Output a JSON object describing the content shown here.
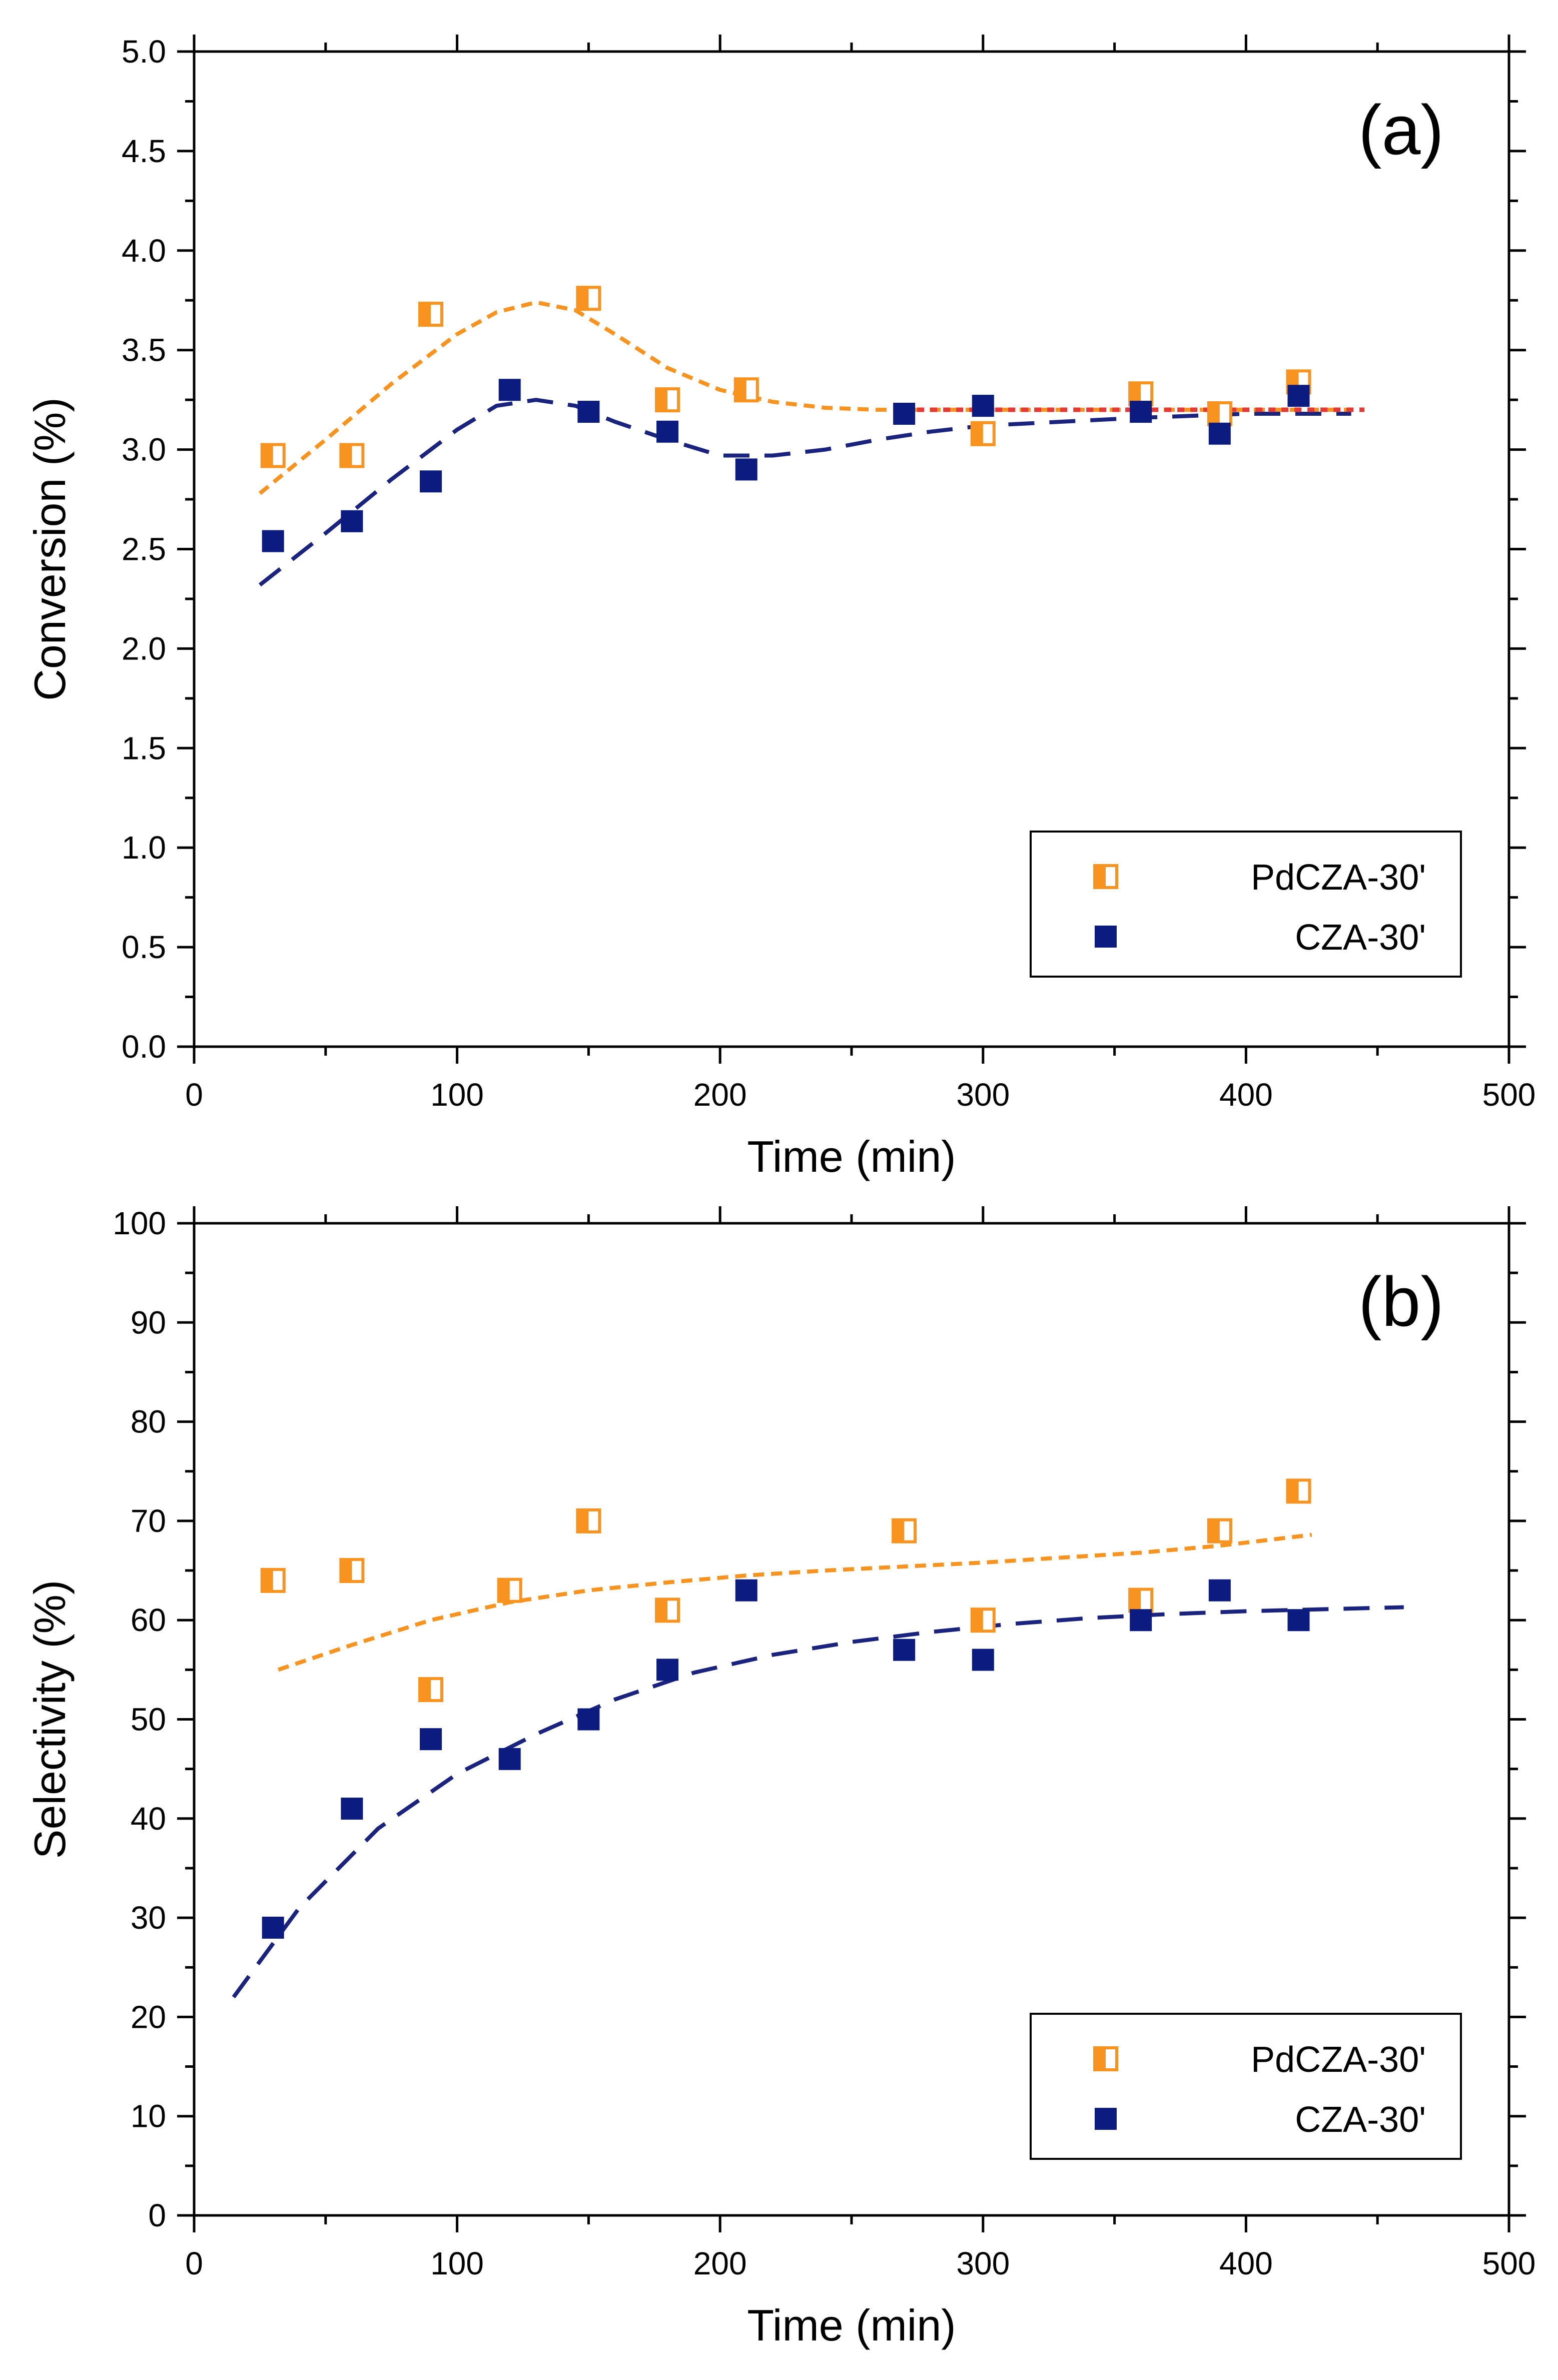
{
  "colors": {
    "pd": "#F7931E",
    "cza": "#0B1B7F",
    "pd_fit": "#F7931E",
    "cza_fit": "#1A237E",
    "ref_line": "#E53935"
  },
  "chart_data": [
    {
      "type": "scatter",
      "panel_label": "(a)",
      "xlabel": "Time (min)",
      "ylabel": "Conversion (%)",
      "xlim": [
        0,
        500
      ],
      "ylim": [
        0.0,
        5.0
      ],
      "x_ticks": [
        "0",
        "100",
        "200",
        "300",
        "400",
        "500"
      ],
      "y_ticks": [
        "0.0",
        "0.5",
        "1.0",
        "1.5",
        "2.0",
        "2.5",
        "3.0",
        "3.5",
        "4.0",
        "4.5",
        "5.0"
      ],
      "legend_position": "bottom-right",
      "series": [
        {
          "name": "PdCZA-30'",
          "marker": "half-filled-square",
          "x": [
            30,
            60,
            90,
            150,
            180,
            210,
            300,
            360,
            390,
            420
          ],
          "y": [
            2.97,
            2.97,
            3.68,
            3.76,
            3.25,
            3.3,
            3.08,
            3.28,
            3.18,
            3.34
          ]
        },
        {
          "name": "CZA-30'",
          "marker": "filled-square",
          "x": [
            30,
            60,
            90,
            120,
            150,
            180,
            210,
            270,
            300,
            360,
            390,
            420
          ],
          "y": [
            2.54,
            2.64,
            2.84,
            3.3,
            3.19,
            3.09,
            2.9,
            3.18,
            3.22,
            3.19,
            3.08,
            3.27
          ]
        }
      ],
      "fits": [
        {
          "name": "PdCZA-30' fit",
          "style": "short-dash",
          "x": [
            25,
            50,
            75,
            100,
            115,
            130,
            145,
            160,
            180,
            200,
            220,
            240,
            260,
            280,
            310,
            350,
            400,
            440
          ],
          "y": [
            2.78,
            3.05,
            3.33,
            3.58,
            3.69,
            3.74,
            3.7,
            3.58,
            3.41,
            3.3,
            3.24,
            3.21,
            3.2,
            3.2,
            3.2,
            3.2,
            3.2,
            3.2
          ]
        },
        {
          "name": "CZA-30' fit",
          "style": "long-dash",
          "x": [
            25,
            50,
            75,
            100,
            115,
            130,
            145,
            160,
            180,
            200,
            220,
            240,
            260,
            280,
            300,
            330,
            360,
            400,
            440
          ],
          "y": [
            2.32,
            2.58,
            2.85,
            3.1,
            3.22,
            3.25,
            3.22,
            3.14,
            3.05,
            2.97,
            2.97,
            3.0,
            3.05,
            3.09,
            3.12,
            3.14,
            3.16,
            3.18,
            3.18
          ]
        },
        {
          "name": "reference",
          "style": "dotted",
          "x": [
            270,
            445
          ],
          "y": [
            3.2,
            3.2
          ]
        }
      ]
    },
    {
      "type": "scatter",
      "panel_label": "(b)",
      "xlabel": "Time (min)",
      "ylabel": "Selectivity (%)",
      "xlim": [
        0,
        500
      ],
      "ylim": [
        0,
        100
      ],
      "x_ticks": [
        "0",
        "100",
        "200",
        "300",
        "400",
        "500"
      ],
      "y_ticks": [
        "0",
        "10",
        "20",
        "30",
        "40",
        "50",
        "60",
        "70",
        "80",
        "90",
        "100"
      ],
      "legend_position": "bottom-right",
      "series": [
        {
          "name": "PdCZA-30'",
          "marker": "half-filled-square",
          "x": [
            30,
            60,
            90,
            120,
            150,
            180,
            270,
            300,
            360,
            390,
            420
          ],
          "y": [
            64,
            65,
            53,
            63,
            70,
            61,
            69,
            60,
            62,
            69,
            73
          ]
        },
        {
          "name": "CZA-30'",
          "marker": "filled-square",
          "x": [
            30,
            60,
            90,
            120,
            150,
            180,
            210,
            270,
            300,
            360,
            390,
            420
          ],
          "y": [
            29,
            41,
            48,
            46,
            50,
            55,
            63,
            57,
            56,
            60,
            63,
            60
          ]
        }
      ],
      "fits": [
        {
          "name": "PdCZA-30' fit",
          "style": "short-dash",
          "x": [
            32,
            60,
            90,
            120,
            150,
            180,
            210,
            240,
            270,
            300,
            330,
            360,
            390,
            425
          ],
          "y": [
            55,
            57.5,
            60,
            61.8,
            63,
            63.8,
            64.5,
            65,
            65.4,
            65.8,
            66.3,
            66.8,
            67.5,
            68.6
          ]
        },
        {
          "name": "CZA-30' fit",
          "style": "long-dash",
          "x": [
            15,
            40,
            70,
            100,
            130,
            160,
            190,
            220,
            250,
            280,
            310,
            340,
            370,
            400,
            430,
            460
          ],
          "y": [
            22,
            31,
            39,
            44.5,
            48.5,
            52,
            54.7,
            56.5,
            57.8,
            58.8,
            59.6,
            60.2,
            60.6,
            60.9,
            61.1,
            61.3
          ]
        }
      ]
    }
  ]
}
